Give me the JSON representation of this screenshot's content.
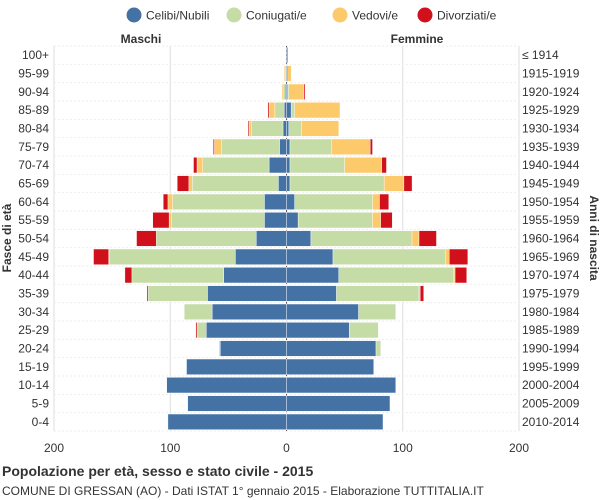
{
  "chart_data": {
    "type": "bar",
    "orientation": "horizontal-diverging",
    "title": "Popolazione per età, sesso e stato civile - 2015",
    "subtitle": "COMUNE DI GRESSAN (AO) - Dati ISTAT 1° gennaio 2015 - Elaborazione TUTTITALIA.IT",
    "left_header": "Maschi",
    "right_header": "Femmine",
    "ylabel_left": "Fasce di età",
    "ylabel_right": "Anni di nascita",
    "xlim": [
      -200,
      200
    ],
    "xticks": [
      "200",
      "100",
      "0",
      "100",
      "200"
    ],
    "legend": [
      {
        "name": "Celibi/Nubili",
        "color": "#4472a4"
      },
      {
        "name": "Coniugati/e",
        "color": "#c5dca7"
      },
      {
        "name": "Vedovi/e",
        "color": "#fcc96b"
      },
      {
        "name": "Divorziati/e",
        "color": "#d0101a"
      }
    ],
    "categories": [
      "100+",
      "95-99",
      "90-94",
      "85-89",
      "80-84",
      "75-79",
      "70-74",
      "65-69",
      "60-64",
      "55-59",
      "50-54",
      "45-49",
      "40-44",
      "35-39",
      "30-34",
      "25-29",
      "20-24",
      "15-19",
      "10-14",
      "5-9",
      "0-4"
    ],
    "birth_years": [
      "≤ 1914",
      "1915-1919",
      "1920-1924",
      "1925-1929",
      "1930-1934",
      "1935-1939",
      "1940-1944",
      "1945-1949",
      "1950-1954",
      "1955-1959",
      "1960-1964",
      "1965-1969",
      "1970-1974",
      "1975-1979",
      "1980-1984",
      "1985-1989",
      "1990-1994",
      "1995-1999",
      "2000-2004",
      "2005-2009",
      "2010-2014"
    ],
    "males": {
      "celibi": [
        0,
        0,
        1,
        2,
        3,
        6,
        15,
        7,
        19,
        19,
        26,
        44,
        54,
        68,
        64,
        69,
        57,
        86,
        103,
        85,
        102
      ],
      "coniugati": [
        0,
        1,
        2,
        8,
        27,
        50,
        57,
        74,
        79,
        80,
        86,
        108,
        79,
        51,
        24,
        8,
        1,
        0,
        0,
        0,
        0
      ],
      "vedovi": [
        0,
        1,
        1,
        5,
        2,
        6,
        5,
        3,
        4,
        2,
        0,
        1,
        0,
        0,
        0,
        0,
        0,
        0,
        0,
        0,
        0
      ],
      "divorziati": [
        0,
        0,
        0,
        1,
        1,
        1,
        3,
        10,
        4,
        14,
        17,
        13,
        6,
        1,
        0,
        1,
        0,
        0,
        0,
        0,
        0
      ]
    },
    "females": {
      "nubili": [
        1,
        1,
        1,
        4,
        2,
        3,
        3,
        3,
        7,
        10,
        21,
        40,
        45,
        43,
        62,
        54,
        77,
        75,
        94,
        89,
        83
      ],
      "coniugate": [
        0,
        0,
        1,
        3,
        11,
        36,
        47,
        81,
        67,
        64,
        87,
        97,
        99,
        71,
        32,
        25,
        4,
        0,
        0,
        0,
        0
      ],
      "vedove": [
        0,
        3,
        13,
        39,
        32,
        33,
        32,
        17,
        6,
        7,
        6,
        3,
        1,
        1,
        0,
        0,
        0,
        0,
        0,
        0,
        0
      ],
      "divorziate": [
        0,
        0,
        1,
        0,
        0,
        2,
        4,
        7,
        8,
        10,
        15,
        16,
        10,
        3,
        0,
        0,
        0,
        0,
        0,
        0,
        0
      ]
    }
  }
}
